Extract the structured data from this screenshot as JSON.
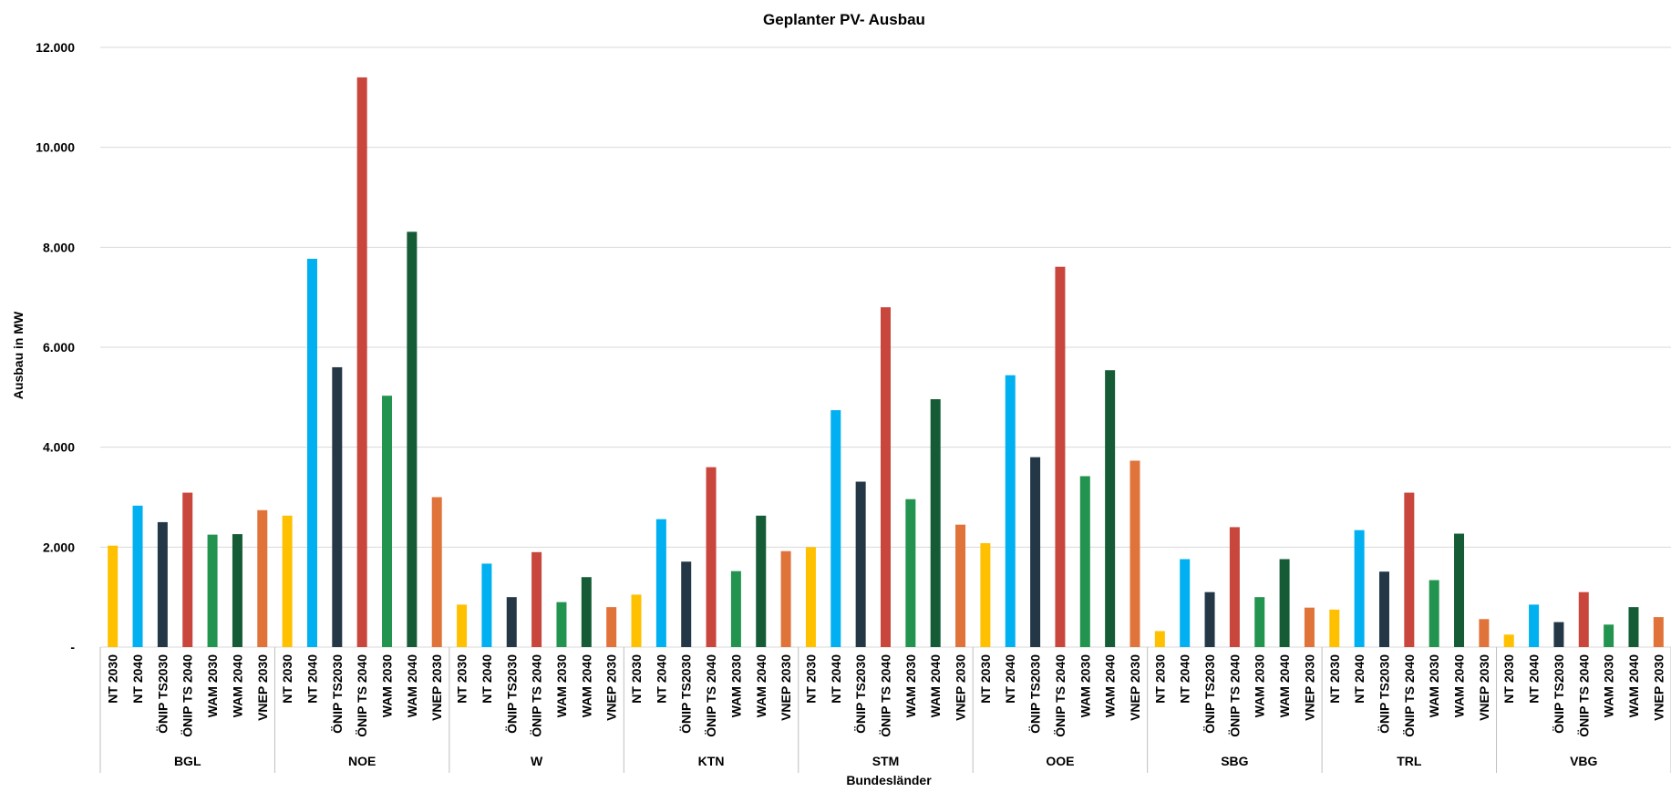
{
  "chart_data": {
    "type": "bar",
    "title": "Geplanter PV- Ausbau",
    "xlabel": "Bundesländer",
    "ylabel": "Ausbau in MW",
    "ylim": [
      0,
      12000
    ],
    "yticks": [
      {
        "value": 0,
        "label": "-"
      },
      {
        "value": 2000,
        "label": "2.000"
      },
      {
        "value": 4000,
        "label": "4.000"
      },
      {
        "value": 6000,
        "label": "6.000"
      },
      {
        "value": 8000,
        "label": "8.000"
      },
      {
        "value": 10000,
        "label": "10.000"
      },
      {
        "value": 12000,
        "label": "12.000"
      }
    ],
    "grid": true,
    "legend": "none",
    "categories": [
      "NT 2030",
      "NT 2040",
      "ÖNIP TS2030",
      "ÖNIP TS 2040",
      "WAM 2030",
      "WAM 2040",
      "VNEP 2030"
    ],
    "colors": [
      "#FFC000",
      "#00B0F0",
      "#243746",
      "#C9463D",
      "#23944F",
      "#155C36",
      "#E0733A"
    ],
    "groups": [
      {
        "name": "BGL",
        "values": [
          2030,
          2830,
          2500,
          3090,
          2250,
          2260,
          2740
        ]
      },
      {
        "name": "NOE",
        "values": [
          2630,
          7770,
          5600,
          11400,
          5030,
          8310,
          3000
        ]
      },
      {
        "name": "W",
        "values": [
          850,
          1670,
          1000,
          1900,
          900,
          1400,
          800
        ]
      },
      {
        "name": "KTN",
        "values": [
          1050,
          2560,
          1710,
          3600,
          1520,
          2630,
          1920
        ]
      },
      {
        "name": "STM",
        "values": [
          2000,
          4740,
          3310,
          6800,
          2960,
          4960,
          2450
        ]
      },
      {
        "name": "OOE",
        "values": [
          2080,
          5440,
          3800,
          7610,
          3420,
          5540,
          3730
        ]
      },
      {
        "name": "SBG",
        "values": [
          320,
          1760,
          1100,
          2400,
          1000,
          1760,
          790
        ]
      },
      {
        "name": "TRL",
        "values": [
          750,
          2340,
          1510,
          3090,
          1340,
          2270,
          560
        ]
      },
      {
        "name": "VBG",
        "values": [
          250,
          850,
          500,
          1100,
          450,
          800,
          600
        ]
      }
    ]
  }
}
